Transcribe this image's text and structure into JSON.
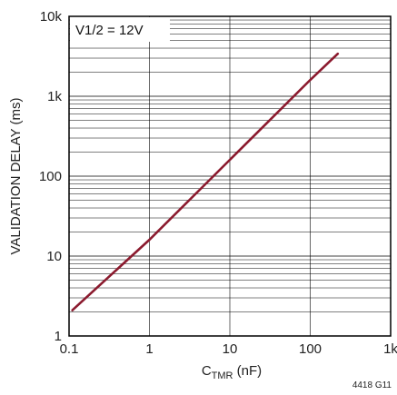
{
  "chart_data": {
    "type": "line",
    "title": "",
    "xlabel_main": "C",
    "xlabel_sub": "TMR",
    "xlabel_unit": " (nF)",
    "ylabel": "VALIDATION DELAY (ms)",
    "x_scale": "log",
    "y_scale": "log",
    "xlim": [
      0.1,
      1000
    ],
    "ylim": [
      1,
      10000
    ],
    "x_tick_values": [
      0.1,
      1,
      10,
      100,
      1000
    ],
    "x_ticks": [
      "0.1",
      "1",
      "10",
      "100",
      "1k"
    ],
    "y_tick_values": [
      1,
      10,
      100,
      1000,
      10000
    ],
    "y_ticks": [
      "1",
      "10",
      "100",
      "1k",
      "10k"
    ],
    "grid": true,
    "annotation": "V1/2 = 12V",
    "series": [
      {
        "name": "",
        "color": "#8b1a2e",
        "x": [
          0.11,
          1,
          10,
          100,
          220
        ],
        "y": [
          2.1,
          16,
          160,
          1600,
          3400
        ]
      }
    ],
    "figure_code": "4418 G11"
  }
}
